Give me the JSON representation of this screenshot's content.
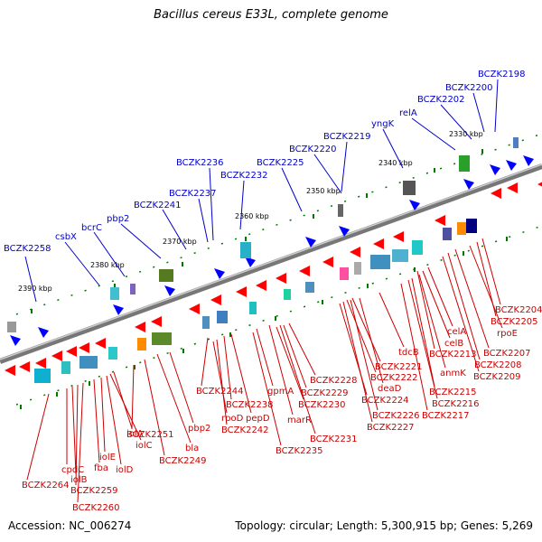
{
  "title": "Bacillus cereus E33L, complete genome",
  "footer": {
    "accession": "Accession: NC_006274",
    "topology": "Topology: circular; Length: 5,300,915 bp; Genes: 5,269"
  },
  "colors": {
    "forward_label": "#0000cc",
    "reverse_label": "#cc0000",
    "forward_gene": "#0000ff",
    "reverse_gene": "#ff0000",
    "tick": "#007700"
  },
  "scale_labels": [
    "2390 kbp",
    "2380 kbp",
    "2370 kbp",
    "2360 kbp",
    "2350 kbp",
    "2340 kbp",
    "2330 kbp"
  ],
  "forward_labels": [
    "BCZK2258",
    "csbX",
    "bcrC",
    "pbp2",
    "BCZK2241",
    "BCZK2237",
    "BCZK2236",
    "BCZK2232",
    "BCZK2225",
    "BCZK2220",
    "BCZK2219",
    "yngK",
    "relA",
    "BCZK2202",
    "BCZK2200",
    "BCZK2198"
  ],
  "reverse_labels": [
    "BCZK2264",
    "cpdC",
    "iolB",
    "BCZK2259",
    "BCZK2260",
    "fba",
    "iolE",
    "iolC",
    "iolA",
    "iolD",
    "BCZK2251",
    "bla",
    "BCZK2249",
    "pbp2",
    "BCZK2244",
    "rpoD",
    "BCZK2242",
    "BCZK2238",
    "pepD",
    "gpmA",
    "marR",
    "BCZK2235",
    "BCZK2228",
    "BCZK2229",
    "BCZK2230",
    "BCZK2231",
    "BCZK2221",
    "BCZK2222",
    "deaD",
    "BCZK2224",
    "BCZK2226",
    "BCZK2227",
    "tdcB",
    "celA",
    "celB",
    "BCZK2213",
    "anmK",
    "BCZK2215",
    "BCZK2216",
    "BCZK2217",
    "BCZK2204",
    "BCZK2205",
    "rpoE",
    "BCZK2207",
    "BCZK2208",
    "BCZK2209"
  ]
}
